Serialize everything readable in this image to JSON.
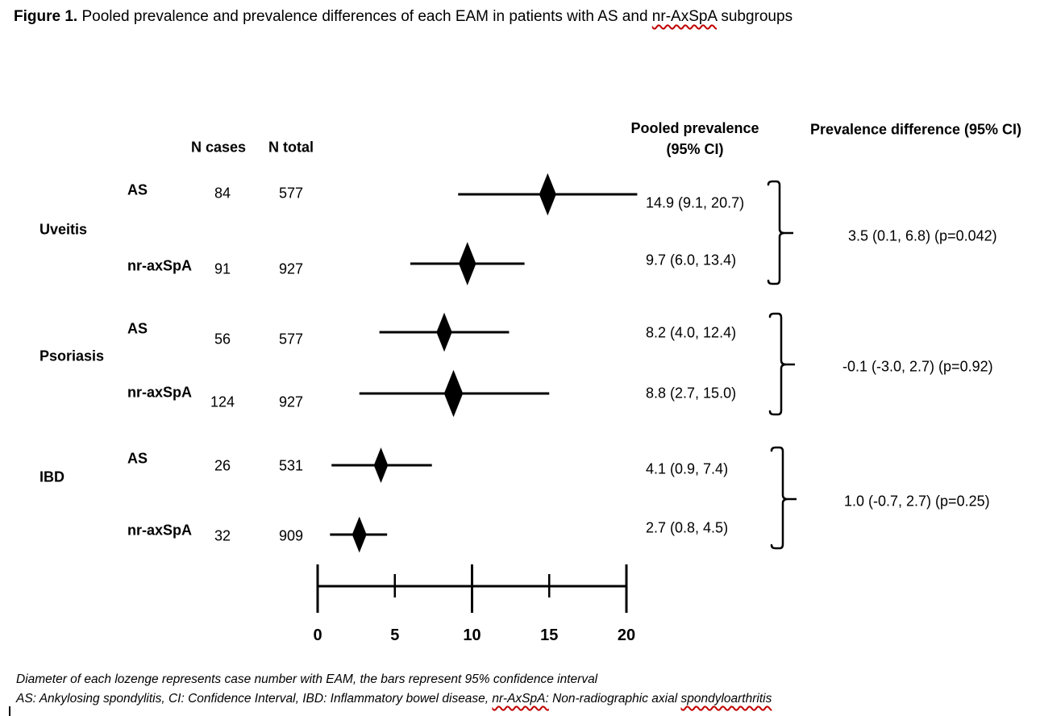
{
  "title": {
    "label": "Figure 1.",
    "before_term": " Pooled prevalence and prevalence differences of each EAM in patients with AS and ",
    "term": "nr-AxSpA",
    "after_term": " subgroups"
  },
  "table_headers": {
    "n_cases": "N cases",
    "n_total": "N total",
    "pooled_line1": "Pooled prevalence",
    "pooled_line2": "(95% CI)",
    "difference": "Prevalence difference (95% CI)"
  },
  "chart_data": {
    "type": "forest",
    "x_axis": {
      "min": 0,
      "max": 20,
      "ticks": [
        0,
        5,
        10,
        15,
        20
      ],
      "major_ticks": [
        0,
        10,
        20
      ],
      "minor_ticks": [
        5,
        15
      ]
    },
    "marker": "black lozenge (diamond), diameter proportional to case number; horizontal bar = 95% CI",
    "groups": [
      {
        "name": "Uveitis",
        "rows": [
          {
            "subgroup": "AS",
            "n_cases": 84,
            "n_total": 577,
            "estimate": 14.9,
            "ci_low": 9.1,
            "ci_high": 20.7,
            "pooled_label": "14.9 (9.1, 20.7)"
          },
          {
            "subgroup": "nr-axSpA",
            "n_cases": 91,
            "n_total": 927,
            "estimate": 9.7,
            "ci_low": 6.0,
            "ci_high": 13.4,
            "pooled_label": "9.7 (6.0, 13.4)"
          }
        ],
        "difference": "3.5 (0.1, 6.8) (p=0.042)"
      },
      {
        "name": "Psoriasis",
        "rows": [
          {
            "subgroup": "AS",
            "n_cases": 56,
            "n_total": 577,
            "estimate": 8.2,
            "ci_low": 4.0,
            "ci_high": 12.4,
            "pooled_label": "8.2 (4.0, 12.4)"
          },
          {
            "subgroup": "nr-axSpA",
            "n_cases": 124,
            "n_total": 927,
            "estimate": 8.8,
            "ci_low": 2.7,
            "ci_high": 15.0,
            "pooled_label": "8.8 (2.7, 15.0)"
          }
        ],
        "difference": "-0.1 (-3.0, 2.7) (p=0.92)"
      },
      {
        "name": "IBD",
        "rows": [
          {
            "subgroup": "AS",
            "n_cases": 26,
            "n_total": 531,
            "estimate": 4.1,
            "ci_low": 0.9,
            "ci_high": 7.4,
            "pooled_label": "4.1 (0.9, 7.4)"
          },
          {
            "subgroup": "nr-axSpA",
            "n_cases": 32,
            "n_total": 909,
            "estimate": 2.7,
            "ci_low": 0.8,
            "ci_high": 4.5,
            "pooled_label": "2.7 (0.8, 4.5)"
          }
        ],
        "difference": "1.0 (-0.7, 2.7) (p=0.25)"
      }
    ]
  },
  "footnotes": {
    "line1": "Diameter of each lozenge represents case number with EAM, the bars represent 95% confidence interval",
    "line2_before": "AS: Ankylosing spondylitis, CI: Confidence Interval, IBD: Inflammatory bowel disease, ",
    "line2_term1": "nr-AxSpA:",
    "line2_middle": " Non-radiographic axial ",
    "line2_term2": "spondyloarthritis"
  },
  "colors": {
    "ink": "#000000",
    "spellcheck_red": "#c00000",
    "background": "#ffffff"
  }
}
